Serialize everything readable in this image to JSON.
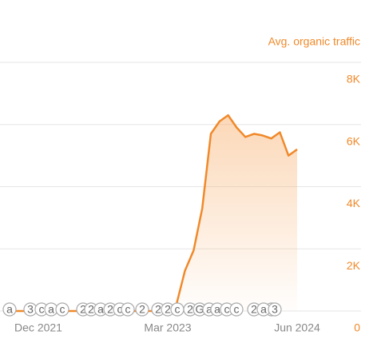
{
  "chart_data": {
    "type": "line",
    "title": "Avg. organic traffic",
    "categories": [
      null,
      null,
      null,
      null,
      "Dec 2021",
      null,
      null,
      null,
      null,
      null,
      null,
      null,
      null,
      null,
      null,
      null,
      null,
      null,
      null,
      "Mar 2023",
      null,
      null,
      null,
      null,
      null,
      null,
      null,
      null,
      null,
      null,
      null,
      null,
      null,
      null,
      "Jun 2024"
    ],
    "series": [
      {
        "name": "Avg. organic traffic",
        "color": "#f0892a",
        "values": [
          0,
          0,
          0,
          0,
          0,
          0,
          0,
          0,
          0,
          0,
          0,
          0,
          0,
          0,
          0,
          0,
          0,
          0,
          0,
          0,
          200,
          1300,
          1950,
          3300,
          5700,
          6100,
          6300,
          5900,
          5600,
          5700,
          5650,
          5550,
          5750,
          5000,
          5200
        ]
      }
    ],
    "ylim": [
      0,
      8000
    ],
    "yticks": [
      0,
      {
        "value": 2000,
        "label": "2K"
      },
      {
        "value": 4000,
        "label": "4K"
      },
      {
        "value": 6000,
        "label": "6K"
      },
      {
        "value": 8000,
        "label": "8K"
      }
    ],
    "grid": true,
    "annotations": [
      "a",
      "3",
      "c",
      "a",
      "c",
      "2",
      "2",
      "a",
      "2",
      "c",
      "c",
      "2",
      "2",
      "2",
      "c",
      "2",
      "G",
      "a",
      "a",
      "c",
      "c",
      "2",
      "2",
      "a",
      "3"
    ]
  }
}
